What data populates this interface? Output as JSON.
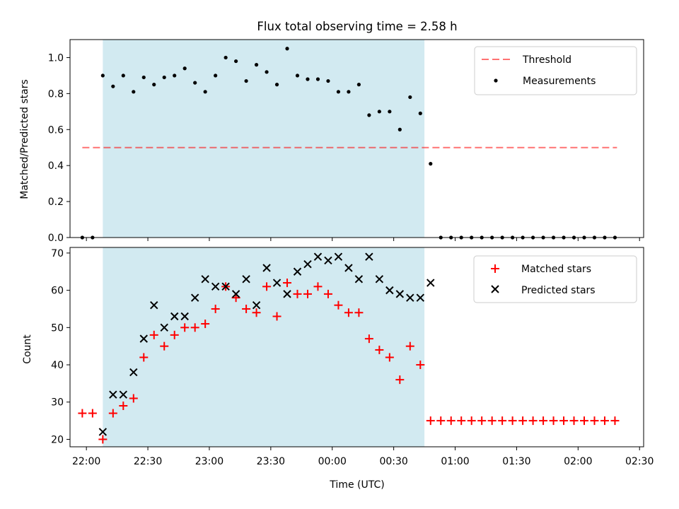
{
  "title": "Flux total observing time = 2.58 h",
  "colors": {
    "shade": "#add8e6",
    "threshold": "#ff0000",
    "measurement": "#000000",
    "matched": "#ff0000",
    "predicted": "#000000"
  },
  "chart_data": [
    {
      "type": "scatter",
      "ylabel": "Matched/Predicted stars",
      "ylim": [
        0,
        1.1
      ],
      "xlim": [
        "21:52",
        "02:32"
      ],
      "yticks": [
        "0.0",
        "0.2",
        "0.4",
        "0.6",
        "0.8",
        "1.0"
      ],
      "shaded_x_range": [
        "22:08",
        "00:45"
      ],
      "legend_position": "upper right",
      "threshold": {
        "name": "Threshold",
        "y": 0.5,
        "x_range": [
          "21:58",
          "02:19"
        ]
      },
      "measurements": {
        "name": "Measurements",
        "x": [
          "21:58",
          "22:03",
          "22:08",
          "22:13",
          "22:18",
          "22:23",
          "22:28",
          "22:33",
          "22:38",
          "22:43",
          "22:48",
          "22:53",
          "22:58",
          "23:03",
          "23:08",
          "23:13",
          "23:18",
          "23:23",
          "23:28",
          "23:33",
          "23:38",
          "23:43",
          "23:48",
          "23:53",
          "23:58",
          "00:03",
          "00:08",
          "00:13",
          "00:18",
          "00:23",
          "00:28",
          "00:33",
          "00:38",
          "00:43",
          "00:48",
          "00:53",
          "00:58",
          "01:03",
          "01:08",
          "01:13",
          "01:18",
          "01:23",
          "01:28",
          "01:33",
          "01:38",
          "01:43",
          "01:48",
          "01:53",
          "01:58",
          "02:03",
          "02:08",
          "02:13",
          "02:18"
        ],
        "y": [
          0,
          0,
          0.9,
          0.84,
          0.9,
          0.81,
          0.89,
          0.85,
          0.89,
          0.9,
          0.94,
          0.86,
          0.81,
          0.9,
          1.0,
          0.98,
          0.87,
          0.96,
          0.92,
          0.85,
          1.05,
          0.9,
          0.88,
          0.88,
          0.87,
          0.81,
          0.81,
          0.85,
          0.68,
          0.7,
          0.7,
          0.6,
          0.78,
          0.69,
          0.41,
          0,
          0,
          0,
          0,
          0,
          0,
          0,
          0,
          0,
          0,
          0,
          0,
          0,
          0,
          0,
          0,
          0,
          0
        ]
      }
    },
    {
      "type": "scatter",
      "ylabel": "Count",
      "xlabel": "Time (UTC)",
      "ylim": [
        18,
        71.5
      ],
      "xlim": [
        "21:52",
        "02:32"
      ],
      "yticks": [
        "20",
        "30",
        "40",
        "50",
        "60",
        "70"
      ],
      "xticks": [
        "22:00",
        "22:30",
        "23:00",
        "23:30",
        "00:00",
        "00:30",
        "01:00",
        "01:30",
        "02:00",
        "02:30"
      ],
      "shaded_x_range": [
        "22:08",
        "00:45"
      ],
      "legend_position": "upper right",
      "series": [
        {
          "name": "Matched stars",
          "marker": "+",
          "x": [
            "21:58",
            "22:03",
            "22:08",
            "22:13",
            "22:18",
            "22:23",
            "22:28",
            "22:33",
            "22:38",
            "22:43",
            "22:48",
            "22:53",
            "22:58",
            "23:03",
            "23:08",
            "23:13",
            "23:18",
            "23:23",
            "23:28",
            "23:33",
            "23:38",
            "23:43",
            "23:48",
            "23:53",
            "23:58",
            "00:03",
            "00:08",
            "00:13",
            "00:18",
            "00:23",
            "00:28",
            "00:33",
            "00:38",
            "00:43",
            "00:48",
            "00:53",
            "00:58",
            "01:03",
            "01:08",
            "01:13",
            "01:18",
            "01:23",
            "01:28",
            "01:33",
            "01:38",
            "01:43",
            "01:48",
            "01:53",
            "01:58",
            "02:03",
            "02:08",
            "02:13",
            "02:18"
          ],
          "y": [
            27,
            27,
            20,
            27,
            29,
            31,
            42,
            48,
            45,
            48,
            50,
            50,
            51,
            55,
            61,
            58,
            55,
            54,
            61,
            53,
            62,
            59,
            59,
            61,
            59,
            56,
            54,
            54,
            47,
            44,
            42,
            36,
            45,
            40,
            25,
            25,
            25,
            25,
            25,
            25,
            25,
            25,
            25,
            25,
            25,
            25,
            25,
            25,
            25,
            25,
            25,
            25,
            25
          ]
        },
        {
          "name": "Predicted stars",
          "marker": "x",
          "x": [
            "22:08",
            "22:13",
            "22:18",
            "22:23",
            "22:28",
            "22:33",
            "22:38",
            "22:43",
            "22:48",
            "22:53",
            "22:58",
            "23:03",
            "23:08",
            "23:13",
            "23:18",
            "23:23",
            "23:28",
            "23:33",
            "23:38",
            "23:43",
            "23:48",
            "23:53",
            "23:58",
            "00:03",
            "00:08",
            "00:13",
            "00:18",
            "00:23",
            "00:28",
            "00:33",
            "00:38",
            "00:43",
            "00:48"
          ],
          "y": [
            22,
            32,
            32,
            38,
            47,
            56,
            50,
            53,
            53,
            58,
            63,
            61,
            61,
            59,
            63,
            56,
            66,
            62,
            59,
            65,
            67,
            69,
            68,
            69,
            66,
            63,
            69,
            63,
            60,
            59,
            58,
            58,
            62
          ]
        }
      ]
    }
  ]
}
